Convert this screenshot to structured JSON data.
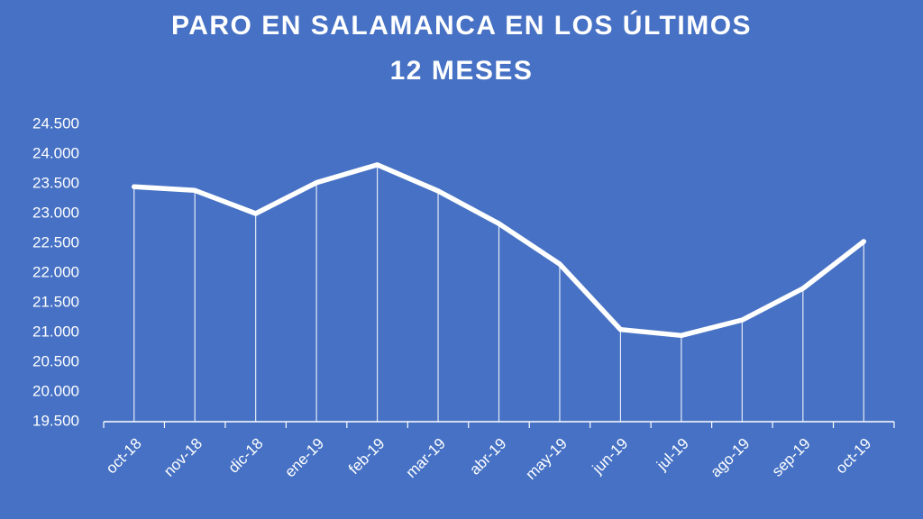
{
  "chart_data": {
    "type": "line",
    "title": [
      "PARO EN SALAMANCA  EN LOS ÚLTIMOS",
      "12 MESES"
    ],
    "categories": [
      "oct-18",
      "nov-18",
      "dic-18",
      "ene-19",
      "feb-19",
      "mar-19",
      "abr-19",
      "may-19",
      "jun-19",
      "jul-19",
      "ago-19",
      "sep-19",
      "oct-19"
    ],
    "values": [
      23450,
      23390,
      23000,
      23520,
      23820,
      23380,
      22830,
      22150,
      21050,
      20950,
      21210,
      21740,
      22530
    ],
    "color": "#ffffff",
    "drop_lines": true,
    "ylim": [
      19500,
      24500
    ],
    "yticks": [
      {
        "value": 19500,
        "label": "19.500"
      },
      {
        "value": 20000,
        "label": "20.000"
      },
      {
        "value": 20500,
        "label": "20.500"
      },
      {
        "value": 21000,
        "label": "21.000"
      },
      {
        "value": 21500,
        "label": "21.500"
      },
      {
        "value": 22000,
        "label": "22.000"
      },
      {
        "value": 22500,
        "label": "22.500"
      },
      {
        "value": 23000,
        "label": "23.000"
      },
      {
        "value": 23500,
        "label": "23.500"
      },
      {
        "value": 24000,
        "label": "24.000"
      },
      {
        "value": 24500,
        "label": "24.500"
      }
    ]
  }
}
